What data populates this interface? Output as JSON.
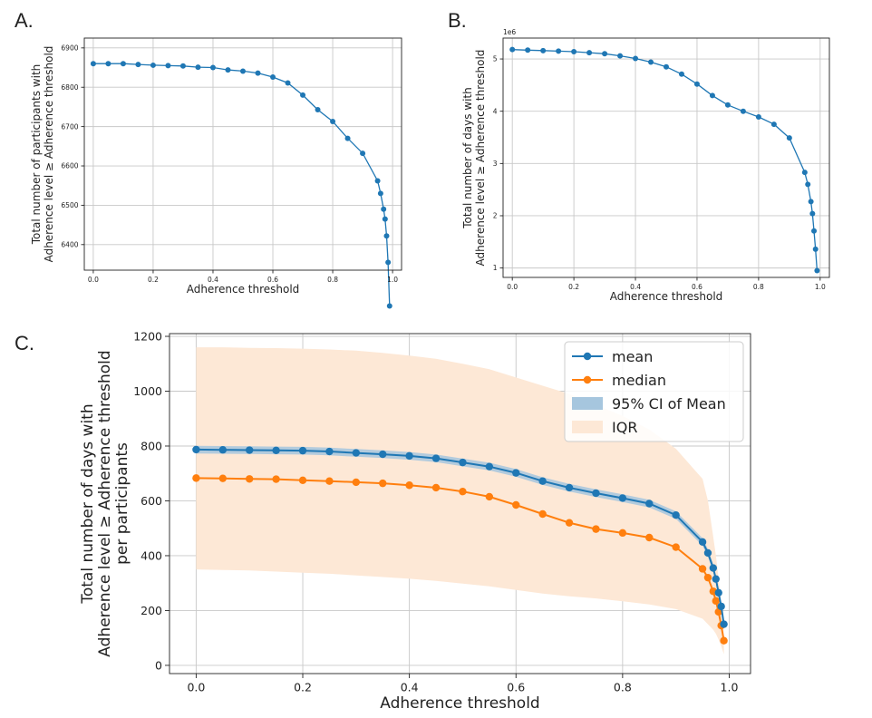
{
  "panels": {
    "a": "A.",
    "b": "B.",
    "c": "C."
  },
  "colors": {
    "mean": "#1f77b4",
    "median": "#ff7f0e",
    "ci": "#a6c6de",
    "iqr": "#fde8d6",
    "grid": "#c8c8c8"
  },
  "chart_data": [
    {
      "panel": "A.",
      "type": "line",
      "xlabel": "Adherence threshold",
      "ylabel_lines": [
        "Total number of participants with",
        "Adherence level ≥ Adherence threshold"
      ],
      "xlim": [
        -0.03,
        1.03
      ],
      "ylim": [
        6335,
        6925
      ],
      "xticks": [
        0.0,
        0.2,
        0.4,
        0.6,
        0.8,
        1.0
      ],
      "xtick_labels": [
        "0.0",
        "0.2",
        "0.4",
        "0.6",
        "0.8",
        "1.0"
      ],
      "yticks": [
        6400,
        6500,
        6600,
        6700,
        6800,
        6900
      ],
      "ytick_labels": [
        "6400",
        "6500",
        "6600",
        "6700",
        "6800",
        "6900"
      ],
      "grid": true,
      "series": [
        {
          "x": [
            0.0,
            0.05,
            0.1,
            0.15,
            0.2,
            0.25,
            0.3,
            0.35,
            0.4,
            0.45,
            0.5,
            0.55,
            0.6,
            0.65,
            0.7,
            0.75,
            0.8,
            0.85,
            0.9,
            0.95,
            0.96,
            0.97,
            0.975,
            0.98,
            0.985,
            0.99
          ],
          "y": [
            6860,
            6860,
            6860,
            6858,
            6856,
            6855,
            6854,
            6851,
            6850,
            6844,
            6841,
            6836,
            6826,
            6811,
            6780,
            6743,
            6713,
            6670,
            6632,
            6562,
            6530,
            6490,
            6465,
            6422,
            6355,
            6244
          ]
        }
      ]
    },
    {
      "panel": "B.",
      "type": "line",
      "xlabel": "Adherence threshold",
      "ylabel_lines": [
        "Total number of days with",
        "Adherence level ≥ Adherence threshold"
      ],
      "offset_label": "1e6",
      "xlim": [
        -0.03,
        1.03
      ],
      "ylim": [
        0.82,
        5.4
      ],
      "xticks": [
        0.0,
        0.2,
        0.4,
        0.6,
        0.8,
        1.0
      ],
      "xtick_labels": [
        "0.0",
        "0.2",
        "0.4",
        "0.6",
        "0.8",
        "1.0"
      ],
      "yticks": [
        1,
        2,
        3,
        4,
        5
      ],
      "ytick_labels": [
        "1",
        "2",
        "3",
        "4",
        "5"
      ],
      "grid": true,
      "series": [
        {
          "x": [
            0.0,
            0.05,
            0.1,
            0.15,
            0.2,
            0.25,
            0.3,
            0.35,
            0.4,
            0.45,
            0.5,
            0.55,
            0.6,
            0.65,
            0.7,
            0.75,
            0.8,
            0.85,
            0.9,
            0.95,
            0.96,
            0.97,
            0.975,
            0.98,
            0.985,
            0.99
          ],
          "y": [
            5.18,
            5.17,
            5.16,
            5.15,
            5.14,
            5.12,
            5.1,
            5.06,
            5.01,
            4.94,
            4.85,
            4.71,
            4.52,
            4.3,
            4.12,
            4.0,
            3.89,
            3.75,
            3.49,
            2.83,
            2.6,
            2.27,
            2.04,
            1.71,
            1.36,
            0.95
          ]
        }
      ]
    },
    {
      "panel": "C.",
      "type": "line",
      "xlabel": "Adherence threshold",
      "ylabel_lines": [
        "Total number of days with",
        "Adherence level ≥ Adherence threshold",
        "per participants"
      ],
      "xlim": [
        -0.05,
        1.04
      ],
      "ylim": [
        -30,
        1210
      ],
      "xticks": [
        0.0,
        0.2,
        0.4,
        0.6,
        0.8,
        1.0
      ],
      "xtick_labels": [
        "0.0",
        "0.2",
        "0.4",
        "0.6",
        "0.8",
        "1.0"
      ],
      "yticks": [
        0,
        200,
        400,
        600,
        800,
        1000,
        1200
      ],
      "ytick_labels": [
        "0",
        "200",
        "400",
        "600",
        "800",
        "1000",
        "1200"
      ],
      "grid": true,
      "legend_position": "top-right",
      "x": [
        0.0,
        0.05,
        0.1,
        0.15,
        0.2,
        0.25,
        0.3,
        0.35,
        0.4,
        0.45,
        0.5,
        0.55,
        0.6,
        0.65,
        0.7,
        0.75,
        0.8,
        0.85,
        0.9,
        0.95,
        0.96,
        0.97,
        0.975,
        0.98,
        0.985,
        0.99
      ],
      "series": [
        {
          "name": "mean",
          "values": [
            787,
            786,
            785,
            784,
            783,
            780,
            775,
            770,
            764,
            755,
            740,
            725,
            702,
            672,
            648,
            628,
            610,
            590,
            548,
            450,
            410,
            355,
            315,
            265,
            215,
            150
          ]
        },
        {
          "name": "median",
          "values": [
            683,
            682,
            680,
            679,
            675,
            672,
            668,
            664,
            657,
            648,
            634,
            615,
            585,
            552,
            520,
            497,
            483,
            466,
            431,
            352,
            320,
            270,
            235,
            195,
            145,
            90
          ]
        }
      ],
      "bands": [
        {
          "name": "95% CI of Mean",
          "lower": [
            773,
            772,
            771,
            770,
            769,
            766,
            761,
            756,
            750,
            741,
            726,
            711,
            688,
            658,
            634,
            614,
            596,
            576,
            534,
            436,
            396,
            341,
            301,
            251,
            201,
            136
          ],
          "upper": [
            801,
            800,
            799,
            798,
            797,
            794,
            789,
            784,
            778,
            769,
            754,
            739,
            716,
            686,
            662,
            642,
            624,
            604,
            562,
            464,
            424,
            369,
            329,
            279,
            229,
            164
          ]
        },
        {
          "name": "IQR",
          "lower": [
            350,
            348,
            346,
            342,
            338,
            334,
            328,
            322,
            316,
            308,
            298,
            288,
            275,
            262,
            252,
            244,
            234,
            222,
            205,
            170,
            150,
            130,
            115,
            95,
            70,
            40
          ],
          "upper": [
            1160,
            1160,
            1158,
            1157,
            1155,
            1152,
            1148,
            1140,
            1130,
            1118,
            1100,
            1080,
            1050,
            1020,
            990,
            950,
            910,
            860,
            790,
            680,
            600,
            470,
            400,
            320,
            220,
            110
          ]
        }
      ],
      "legend": [
        "mean",
        "median",
        "95% CI of Mean",
        "IQR"
      ]
    }
  ]
}
